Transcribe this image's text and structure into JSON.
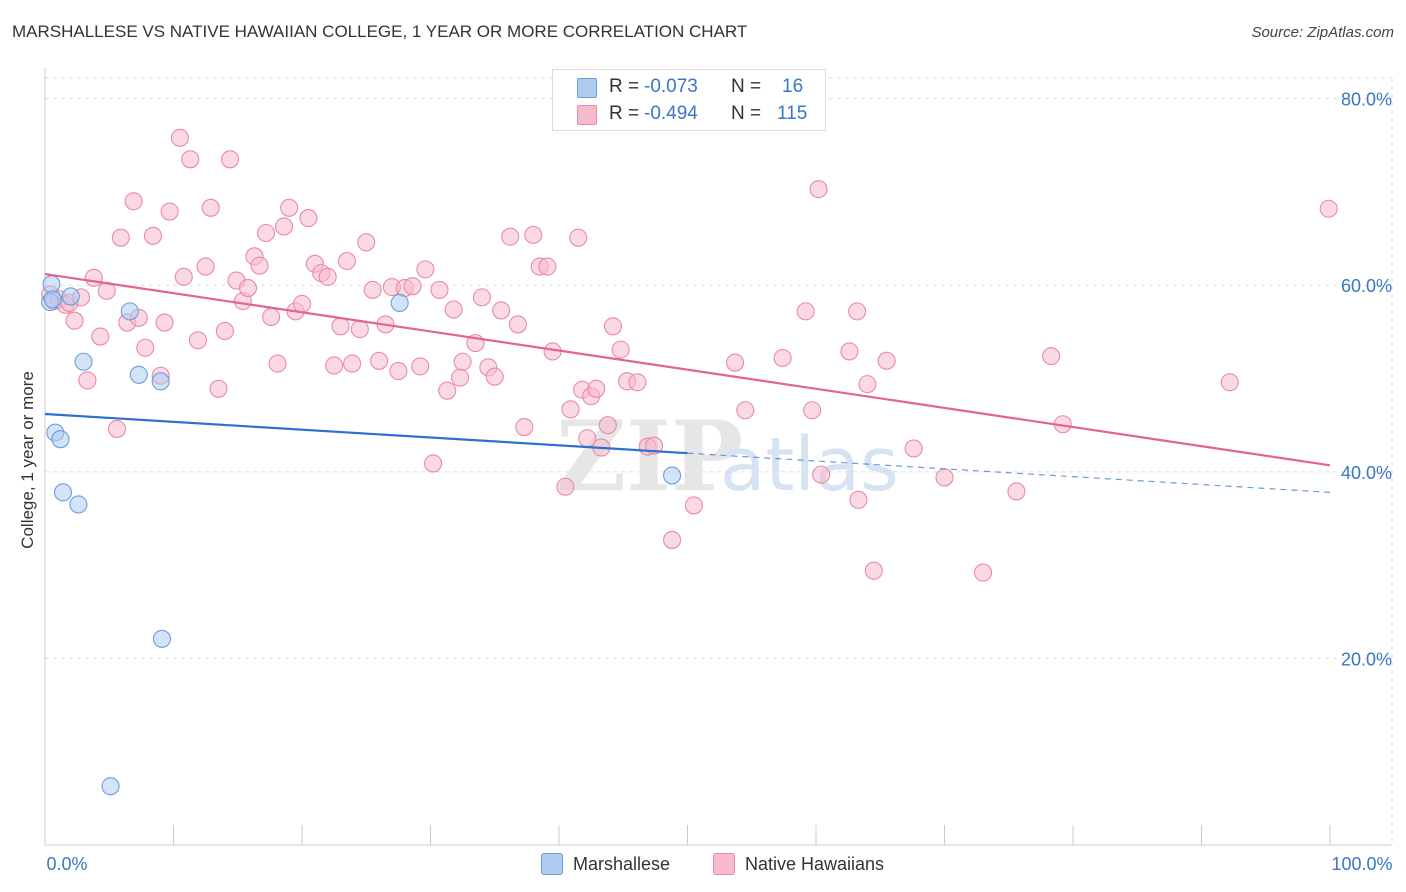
{
  "header": {
    "title": "MARSHALLESE VS NATIVE HAWAIIAN COLLEGE, 1 YEAR OR MORE CORRELATION CHART",
    "source": "Source: ZipAtlas.com"
  },
  "watermark": {
    "zip": "ZIP",
    "atlas": "atlas"
  },
  "colors": {
    "marshallese_fill": "#aeccf2",
    "marshallese_stroke": "#6a9fdc",
    "marshallese_line": "#2f6fcf",
    "hawaiian_fill": "#f7b9cc",
    "hawaiian_stroke": "#e98aa8",
    "hawaiian_line": "#e5638f",
    "tick_label": "#3a76c4",
    "grid": "#dddddd"
  },
  "legend": {
    "rows": [
      {
        "series": "Marshallese",
        "r_label": "R =",
        "r_value": "-0.073",
        "n_label": "N =",
        "n_value": "16"
      },
      {
        "series": "Native Hawaiians",
        "r_label": "R =",
        "r_value": "-0.494",
        "n_label": "N =",
        "n_value": "115"
      }
    ]
  },
  "bottom_legend": {
    "marshallese": "Marshallese",
    "hawaiian": "Native Hawaiians"
  },
  "chart_data": {
    "type": "scatter",
    "title": "MARSHALLESE VS NATIVE HAWAIIAN COLLEGE, 1 YEAR OR MORE CORRELATION CHART",
    "xlabel": "",
    "ylabel": "College, 1 year or more",
    "xlim": [
      0,
      100
    ],
    "ylim": [
      0,
      82
    ],
    "x_tick_labels": [
      {
        "value": 0,
        "label": "0.0%"
      },
      {
        "value": 100,
        "label": "100.0%"
      }
    ],
    "y_tick_labels": [
      {
        "value": 20,
        "label": "20.0%"
      },
      {
        "value": 40,
        "label": "40.0%"
      },
      {
        "value": 60,
        "label": "60.0%"
      },
      {
        "value": 80,
        "label": "80.0%"
      }
    ],
    "grid": true,
    "series": [
      {
        "name": "Marshallese",
        "r": -0.073,
        "n": 16,
        "trend": {
          "x": [
            0,
            50
          ],
          "y": [
            46.2,
            42.0
          ]
        },
        "trend_dashed": {
          "x": [
            50,
            100
          ],
          "y": [
            42.0,
            37.8
          ]
        },
        "points": [
          [
            0.4,
            58.2
          ],
          [
            0.5,
            60.1
          ],
          [
            0.6,
            58.5
          ],
          [
            0.8,
            44.2
          ],
          [
            1.2,
            43.5
          ],
          [
            1.4,
            37.8
          ],
          [
            2.0,
            58.8
          ],
          [
            2.6,
            36.5
          ],
          [
            3.0,
            51.8
          ],
          [
            6.6,
            57.2
          ],
          [
            7.3,
            50.4
          ],
          [
            9.0,
            49.7
          ],
          [
            9.1,
            22.1
          ],
          [
            27.6,
            58.1
          ],
          [
            48.8,
            39.6
          ],
          [
            5.1,
            6.3
          ]
        ]
      },
      {
        "name": "Native Hawaiians",
        "r": -0.494,
        "n": 115,
        "trend": {
          "x": [
            0,
            100
          ],
          "y": [
            61.2,
            40.7
          ]
        },
        "points": [
          [
            0.4,
            59.0
          ],
          [
            0.7,
            58.3
          ],
          [
            1.1,
            58.5
          ],
          [
            1.6,
            57.9
          ],
          [
            1.9,
            58.1
          ],
          [
            2.8,
            58.7
          ],
          [
            2.3,
            56.2
          ],
          [
            3.3,
            49.8
          ],
          [
            3.8,
            60.8
          ],
          [
            4.3,
            54.5
          ],
          [
            4.8,
            59.4
          ],
          [
            5.6,
            44.6
          ],
          [
            5.9,
            65.1
          ],
          [
            6.4,
            56.0
          ],
          [
            6.9,
            69.0
          ],
          [
            7.3,
            56.5
          ],
          [
            7.8,
            53.3
          ],
          [
            8.4,
            65.3
          ],
          [
            9.0,
            50.3
          ],
          [
            9.3,
            56.0
          ],
          [
            9.7,
            67.9
          ],
          [
            10.5,
            75.8
          ],
          [
            10.8,
            60.9
          ],
          [
            11.3,
            73.5
          ],
          [
            11.9,
            54.1
          ],
          [
            12.5,
            62.0
          ],
          [
            12.9,
            68.3
          ],
          [
            13.5,
            48.9
          ],
          [
            14.0,
            55.1
          ],
          [
            14.4,
            73.5
          ],
          [
            14.9,
            60.5
          ],
          [
            15.4,
            58.3
          ],
          [
            15.8,
            59.7
          ],
          [
            16.3,
            63.1
          ],
          [
            16.7,
            62.1
          ],
          [
            17.2,
            65.6
          ],
          [
            17.6,
            56.6
          ],
          [
            18.1,
            51.6
          ],
          [
            18.6,
            66.3
          ],
          [
            19.0,
            68.3
          ],
          [
            19.5,
            57.2
          ],
          [
            20.0,
            58.0
          ],
          [
            20.5,
            67.2
          ],
          [
            21.0,
            62.3
          ],
          [
            21.5,
            61.3
          ],
          [
            22.0,
            60.9
          ],
          [
            22.5,
            51.4
          ],
          [
            23.0,
            55.6
          ],
          [
            23.5,
            62.6
          ],
          [
            23.9,
            51.6
          ],
          [
            24.5,
            55.3
          ],
          [
            25.0,
            64.6
          ],
          [
            25.5,
            59.5
          ],
          [
            26.0,
            51.9
          ],
          [
            26.5,
            55.8
          ],
          [
            27.0,
            59.8
          ],
          [
            27.5,
            50.8
          ],
          [
            28.0,
            59.7
          ],
          [
            28.6,
            59.9
          ],
          [
            29.2,
            51.3
          ],
          [
            29.6,
            61.7
          ],
          [
            30.2,
            40.9
          ],
          [
            30.7,
            59.5
          ],
          [
            31.3,
            48.7
          ],
          [
            31.8,
            57.4
          ],
          [
            32.3,
            50.1
          ],
          [
            32.5,
            51.8
          ],
          [
            33.5,
            53.8
          ],
          [
            34.0,
            58.7
          ],
          [
            34.5,
            51.2
          ],
          [
            35.0,
            50.2
          ],
          [
            35.5,
            57.3
          ],
          [
            36.2,
            65.2
          ],
          [
            36.8,
            55.8
          ],
          [
            37.3,
            44.8
          ],
          [
            38.0,
            65.4
          ],
          [
            38.5,
            62.0
          ],
          [
            39.1,
            62.0
          ],
          [
            39.5,
            52.9
          ],
          [
            40.5,
            38.4
          ],
          [
            40.9,
            46.7
          ],
          [
            41.5,
            65.1
          ],
          [
            41.8,
            48.8
          ],
          [
            42.2,
            43.6
          ],
          [
            42.5,
            48.1
          ],
          [
            42.9,
            48.9
          ],
          [
            43.3,
            42.6
          ],
          [
            43.8,
            45.0
          ],
          [
            44.2,
            55.6
          ],
          [
            44.8,
            53.1
          ],
          [
            45.3,
            49.7
          ],
          [
            46.1,
            49.6
          ],
          [
            46.9,
            42.7
          ],
          [
            47.4,
            42.8
          ],
          [
            48.8,
            32.7
          ],
          [
            50.5,
            36.4
          ],
          [
            53.7,
            51.7
          ],
          [
            54.5,
            46.6
          ],
          [
            57.4,
            52.2
          ],
          [
            59.2,
            57.2
          ],
          [
            59.7,
            46.6
          ],
          [
            60.2,
            70.3
          ],
          [
            60.4,
            39.7
          ],
          [
            62.6,
            52.9
          ],
          [
            63.2,
            57.2
          ],
          [
            63.3,
            37.0
          ],
          [
            64.0,
            49.4
          ],
          [
            64.5,
            29.4
          ],
          [
            65.5,
            51.9
          ],
          [
            67.6,
            42.5
          ],
          [
            70.0,
            39.4
          ],
          [
            73.0,
            29.2
          ],
          [
            75.6,
            37.9
          ],
          [
            78.3,
            52.4
          ],
          [
            79.2,
            45.1
          ],
          [
            92.2,
            49.6
          ],
          [
            99.9,
            68.2
          ]
        ]
      }
    ]
  }
}
